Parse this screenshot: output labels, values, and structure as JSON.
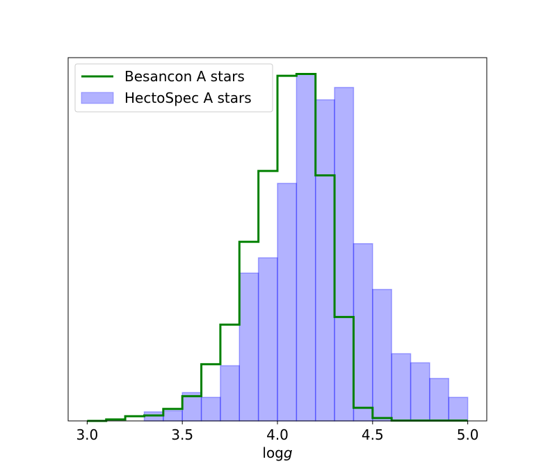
{
  "chart_data": {
    "type": "bar",
    "xlabel": {
      "prefix": "log",
      "italic": "g"
    },
    "ylabel": "",
    "xlim": [
      2.9,
      5.1
    ],
    "ylim": [
      0,
      1.0
    ],
    "xticks": [
      3.0,
      3.5,
      4.0,
      4.5,
      5.0
    ],
    "xtick_labels": [
      "3.0",
      "3.5",
      "4.0",
      "4.5",
      "5.0"
    ],
    "yticks_shown": false,
    "bin_edges": [
      3.0,
      3.1,
      3.2,
      3.3,
      3.4,
      3.5,
      3.6,
      3.7,
      3.8,
      3.9,
      4.0,
      4.1,
      4.2,
      4.3,
      4.4,
      4.5,
      4.6,
      4.7,
      4.8,
      4.9,
      5.0
    ],
    "series": [
      {
        "name": "HectoSpec A stars",
        "kind": "filled-histogram",
        "values": [
          0,
          0,
          0,
          0.025,
          0.028,
          0.078,
          0.065,
          0.152,
          0.407,
          0.449,
          0.654,
          0.955,
          0.884,
          0.918,
          0.488,
          0.362,
          0.185,
          0.16,
          0.117,
          0.065
        ],
        "color": "#0000ff",
        "alpha": 0.3
      },
      {
        "name": "Besancon A stars",
        "kind": "step",
        "values": [
          0,
          0.004,
          0.013,
          0.015,
          0.033,
          0.068,
          0.156,
          0.265,
          0.493,
          0.688,
          0.95,
          0.955,
          0.676,
          0.286,
          0.036,
          0.008,
          0.001,
          0.001,
          0.001,
          0.001
        ],
        "color": "#008000"
      }
    ],
    "legend": {
      "placement": "top-left",
      "entries": [
        {
          "label": "Besancon A stars",
          "style": "line",
          "color": "#008000"
        },
        {
          "label": "HectoSpec A stars",
          "style": "patch",
          "color": "#0000ff"
        }
      ]
    },
    "grid": false
  }
}
